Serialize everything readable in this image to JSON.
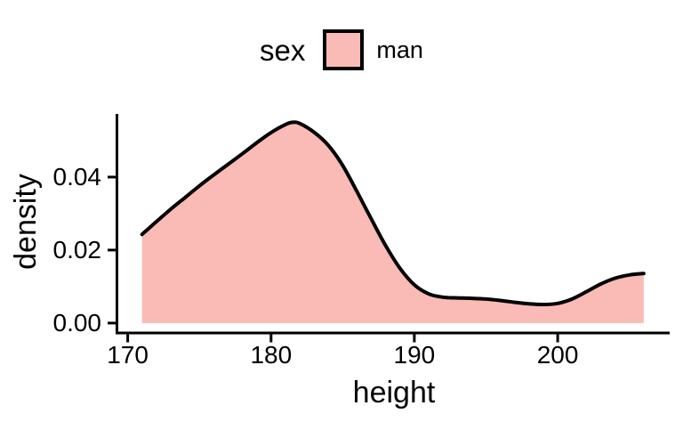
{
  "legend": {
    "title": "sex",
    "entries": [
      {
        "label": "man",
        "fill": "#FABAB5",
        "stroke": "#000000"
      }
    ]
  },
  "chart_data": {
    "type": "area",
    "title": "",
    "xlabel": "height",
    "ylabel": "density",
    "x_ticks": [
      "170",
      "180",
      "190",
      "200"
    ],
    "x_tick_values": [
      170,
      180,
      190,
      200
    ],
    "y_ticks": [
      "0.00",
      "0.02",
      "0.04"
    ],
    "y_tick_values": [
      0,
      0.02,
      0.04
    ],
    "xlim": [
      169.25,
      207.75
    ],
    "ylim": [
      -0.0027,
      0.0573
    ],
    "grid": false,
    "legend_position": "top-center",
    "axis_color": "#000000",
    "series": [
      {
        "name": "man",
        "fill": "#FABAB5",
        "stroke": "#000000",
        "stroke_width": 4,
        "x": [
          171,
          172,
          173,
          174,
          175,
          176,
          177,
          178,
          179,
          180,
          181,
          181.5,
          182,
          183,
          184,
          185,
          186,
          187,
          188,
          189,
          190,
          191,
          192,
          193,
          194,
          195,
          196,
          197,
          198,
          199,
          200,
          201,
          202,
          203,
          204,
          205,
          206
        ],
        "y": [
          0.0243,
          0.0278,
          0.0312,
          0.0344,
          0.0376,
          0.0406,
          0.0435,
          0.0464,
          0.0494,
          0.0522,
          0.0544,
          0.055,
          0.0547,
          0.0523,
          0.0487,
          0.0432,
          0.036,
          0.0285,
          0.0212,
          0.015,
          0.0105,
          0.008,
          0.0071,
          0.0069,
          0.0068,
          0.0066,
          0.0062,
          0.0057,
          0.0053,
          0.0051,
          0.0054,
          0.0066,
          0.0086,
          0.0107,
          0.0123,
          0.0132,
          0.0136
        ]
      }
    ]
  }
}
